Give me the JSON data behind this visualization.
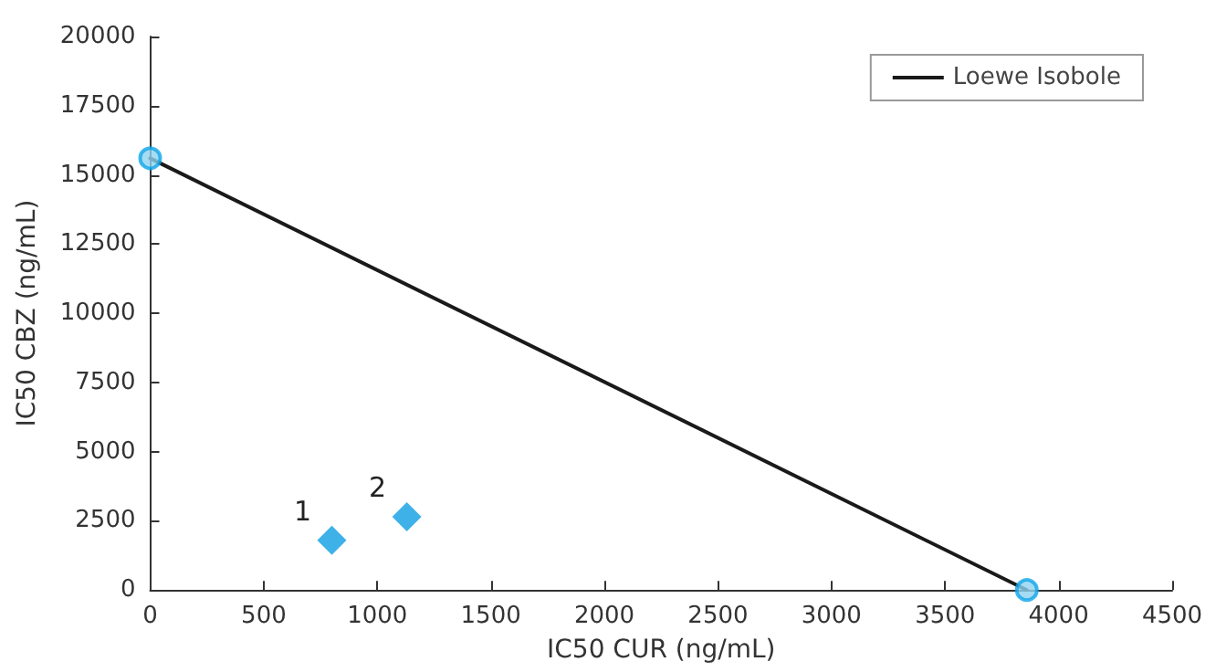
{
  "chart_data": {
    "type": "scatter",
    "xlabel": "IC50 CUR (ng/mL)",
    "ylabel": "IC50 CBZ (ng/mL)",
    "xlim": [
      0,
      4500
    ],
    "xticks": [
      0,
      500,
      1000,
      1500,
      2000,
      2500,
      3000,
      3500,
      4000,
      4500
    ],
    "ylim": [
      0,
      20000
    ],
    "yticks": [
      0,
      2500,
      5000,
      7500,
      10000,
      12500,
      15000,
      17500,
      20000
    ],
    "grid": false,
    "legend": "top right",
    "series": [
      {
        "type": "line",
        "name": "Loewe Isobole",
        "color": "#1a1a1a",
        "x": [
          0,
          3860
        ],
        "values": [
          15600,
          0
        ],
        "marker": "none",
        "line_style": "solid"
      },
      {
        "color": "#8fd3f0",
        "x": [
          0,
          3860
        ],
        "values": [
          15600,
          0
        ],
        "marker": "circle"
      },
      {
        "color": "#0e9ee2",
        "x": [
          800,
          1130
        ],
        "values": [
          1800,
          2650
        ],
        "marker": "diamond"
      }
    ],
    "annotations": [
      {
        "text": "1",
        "x": 800,
        "y": 1800
      },
      {
        "text": "2",
        "x": 1130,
        "y": 2650
      }
    ]
  }
}
